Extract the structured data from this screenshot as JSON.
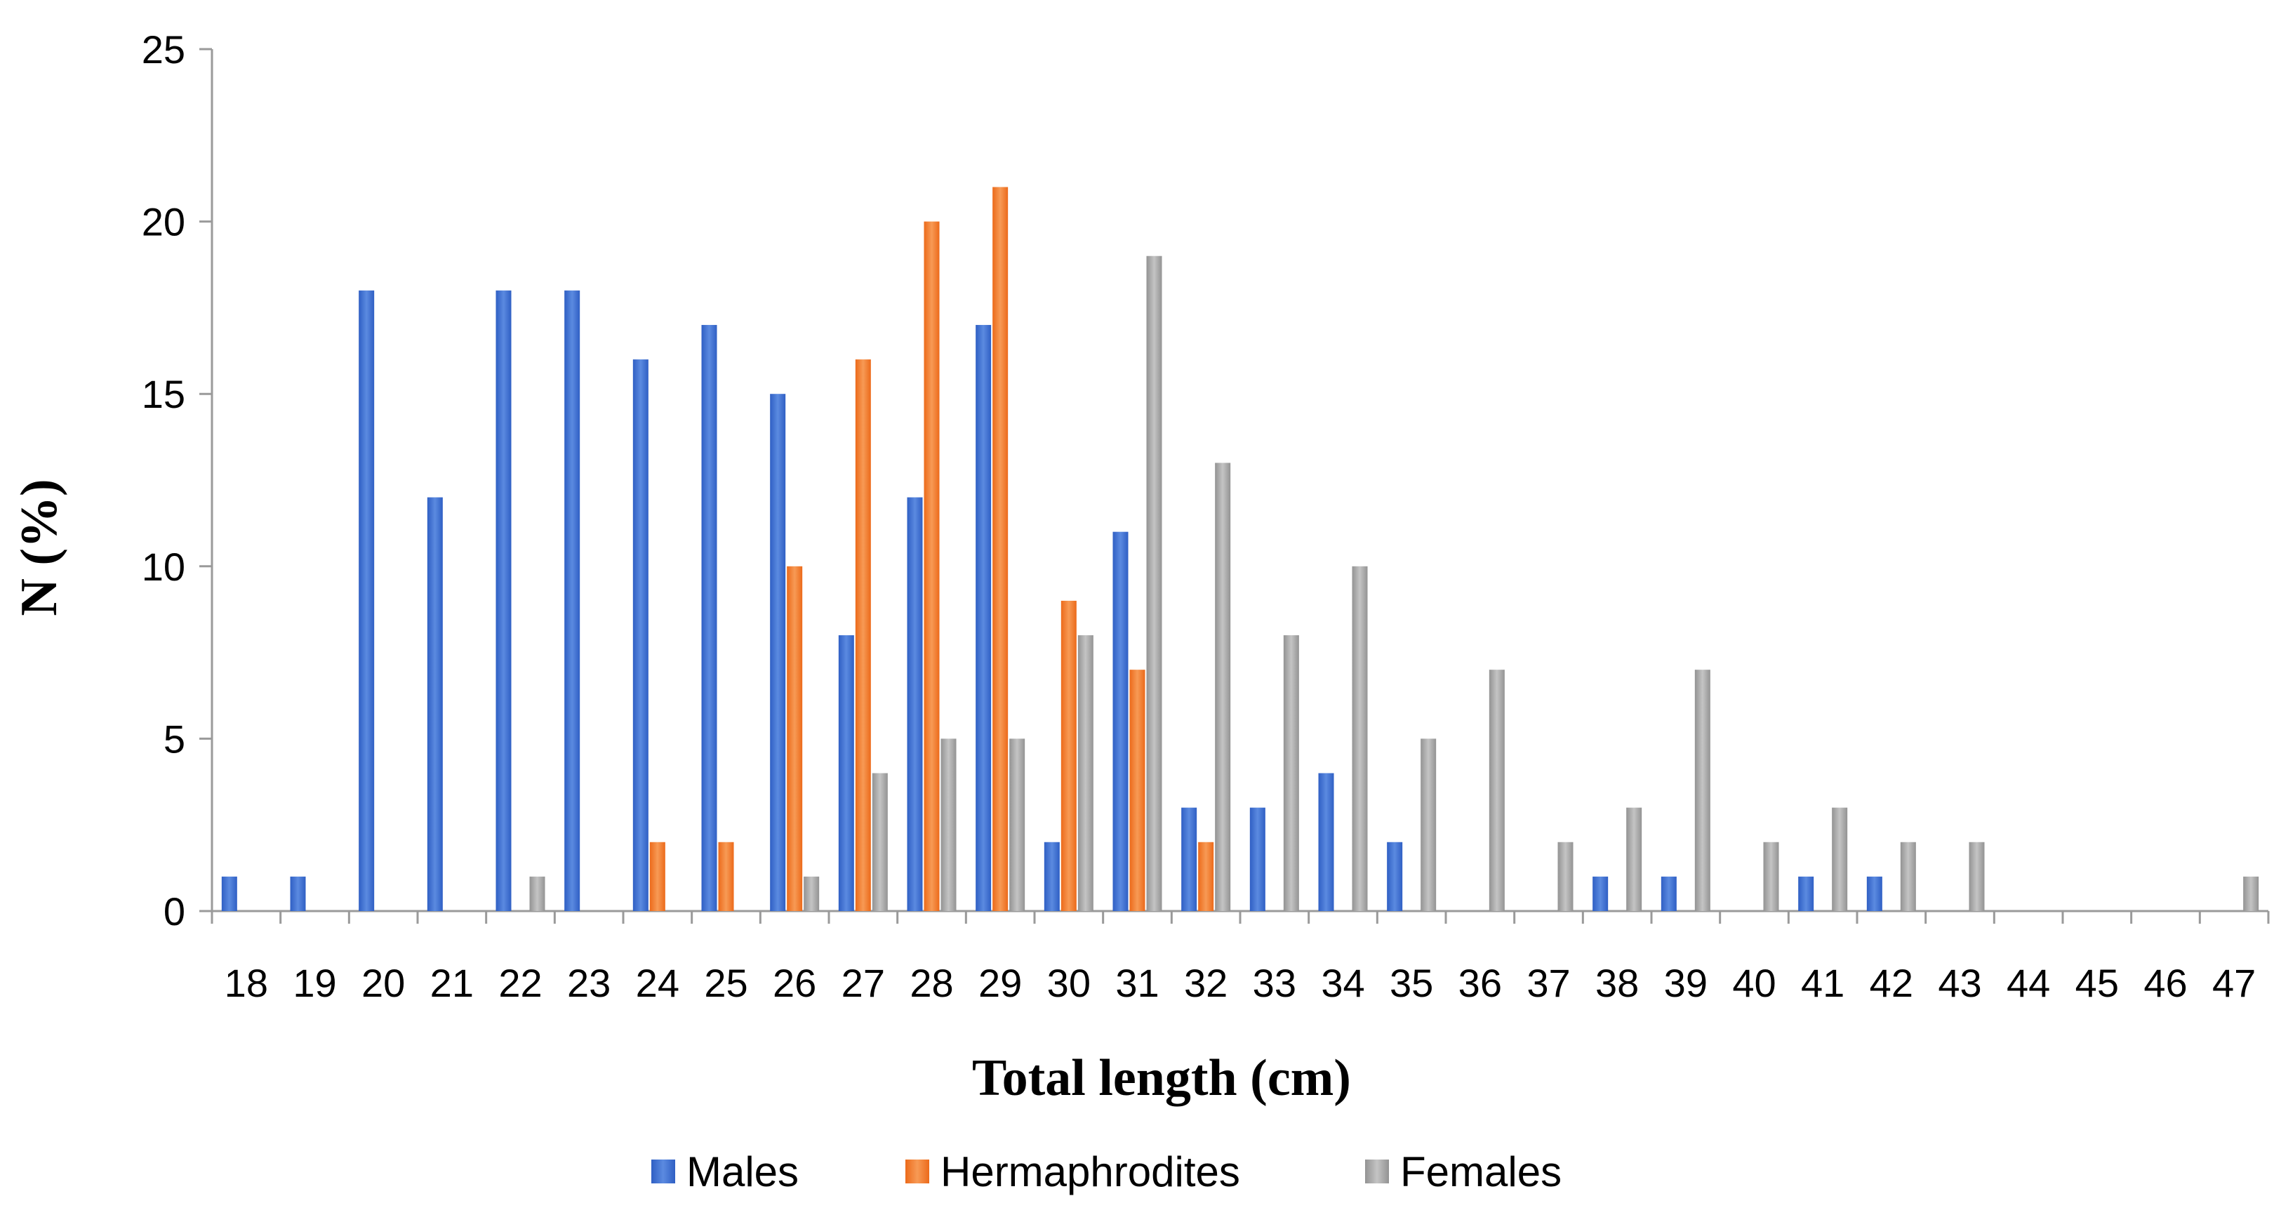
{
  "chart_data": {
    "type": "bar",
    "title": "",
    "xlabel": "Total length (cm)",
    "ylabel": "N (%)",
    "ylim": [
      0,
      25
    ],
    "yticks": [
      0,
      5,
      10,
      15,
      20,
      25
    ],
    "grid": false,
    "legend_position": "bottom",
    "categories": [
      "18",
      "19",
      "20",
      "21",
      "22",
      "23",
      "24",
      "25",
      "26",
      "27",
      "28",
      "29",
      "30",
      "31",
      "32",
      "33",
      "34",
      "35",
      "36",
      "37",
      "38",
      "39",
      "40",
      "41",
      "42",
      "43",
      "44",
      "45",
      "46",
      "47"
    ],
    "series": [
      {
        "name": "Males",
        "color": "#3a6fd0",
        "values": [
          1,
          1,
          18,
          12,
          18,
          18,
          16,
          17,
          15,
          8,
          12,
          17,
          2,
          11,
          3,
          3,
          4,
          2,
          0,
          0,
          1,
          1,
          0,
          1,
          1,
          0,
          0,
          0,
          0,
          0
        ]
      },
      {
        "name": "Hermaphrodites",
        "color": "#f07d2e",
        "values": [
          0,
          0,
          0,
          0,
          0,
          0,
          2,
          2,
          10,
          16,
          20,
          21,
          9,
          7,
          2,
          0,
          0,
          0,
          0,
          0,
          0,
          0,
          0,
          0,
          0,
          0,
          0,
          0,
          0,
          0
        ]
      },
      {
        "name": "Females",
        "color": "#a6a6a6",
        "values": [
          0,
          0,
          0,
          0,
          1,
          0,
          0,
          0,
          1,
          4,
          5,
          5,
          8,
          19,
          13,
          8,
          10,
          5,
          7,
          2,
          3,
          7,
          2,
          3,
          2,
          2,
          0,
          0,
          0,
          1
        ]
      }
    ]
  }
}
